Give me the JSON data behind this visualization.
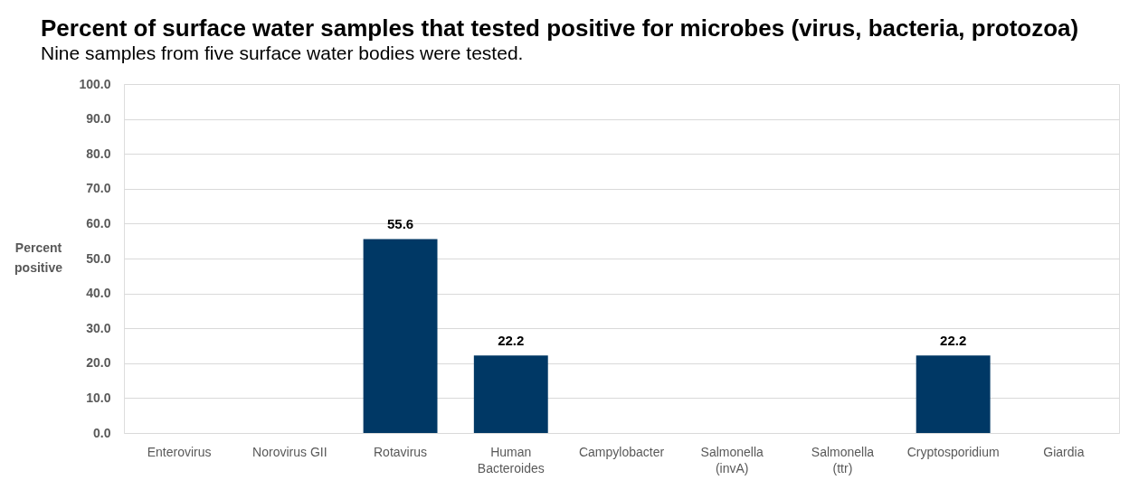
{
  "chart_data": {
    "type": "bar",
    "title": "Percent of surface water samples that tested positive for microbes (virus, bacteria, protozoa)",
    "subtitle": "Nine samples from five surface water bodies were tested.",
    "ylabel": "Percent positive",
    "categories": [
      "Enterovirus",
      "Norovirus GII",
      "Rotavirus",
      "Human Bacteroides",
      "Campylobacter",
      "Salmonella (invA)",
      "Salmonella (ttr)",
      "Cryptosporidium",
      "Giardia"
    ],
    "values": [
      0,
      0,
      55.6,
      22.2,
      0,
      0,
      0,
      22.2,
      0
    ],
    "value_labels": [
      null,
      null,
      "55.6",
      "22.2",
      null,
      null,
      null,
      "22.2",
      null
    ],
    "color": "#003865",
    "ylim": [
      0,
      100
    ],
    "yticks": [
      {
        "value": 0,
        "label": "0.0"
      },
      {
        "value": 10,
        "label": "10.0"
      },
      {
        "value": 20,
        "label": "20.0"
      },
      {
        "value": 30,
        "label": "30.0"
      },
      {
        "value": 40,
        "label": "40.0"
      },
      {
        "value": 50,
        "label": "50.0"
      },
      {
        "value": 60,
        "label": "60.0"
      },
      {
        "value": 70,
        "label": "70.0"
      },
      {
        "value": 80,
        "label": "80.0"
      },
      {
        "value": 90,
        "label": "90.0"
      },
      {
        "value": 100,
        "label": "100.0"
      }
    ],
    "grid": "y"
  }
}
